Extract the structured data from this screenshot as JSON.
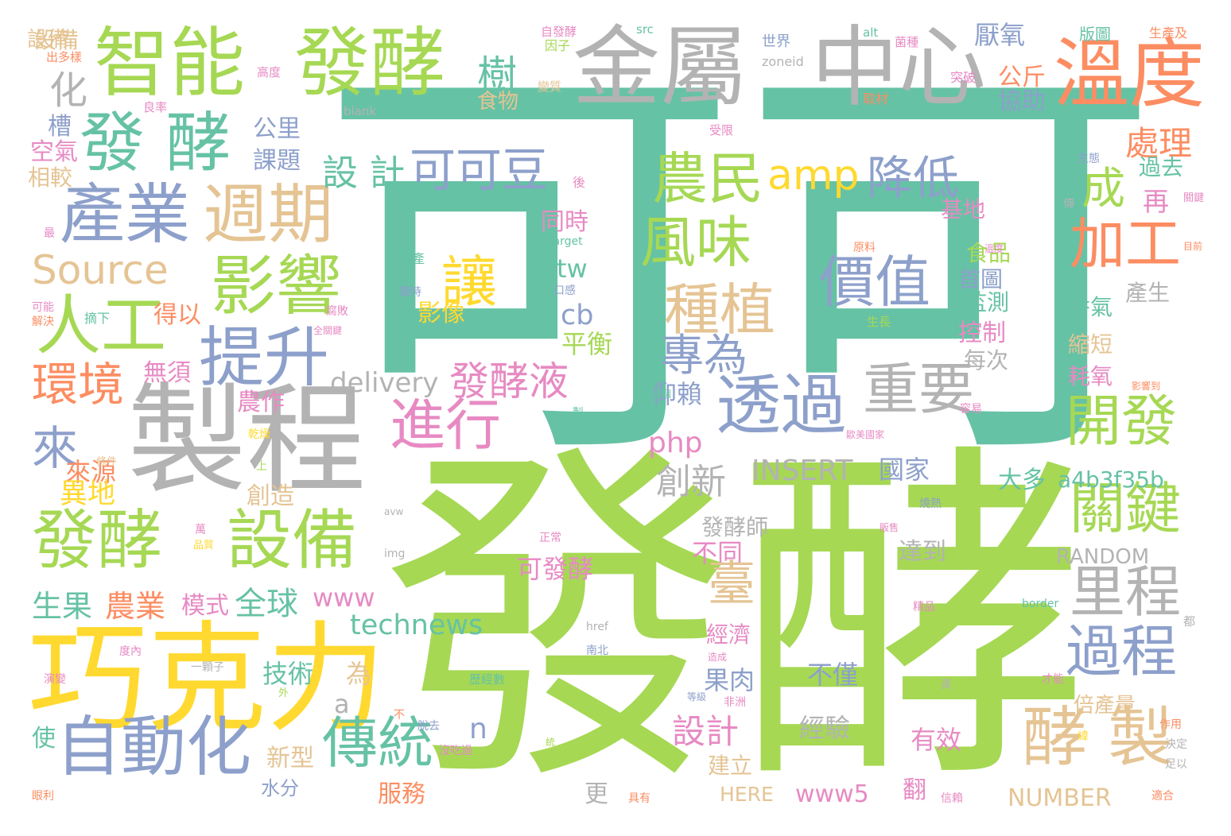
{
  "colors": {
    "teal": "#66c2a5",
    "green": "#a6d854",
    "yellow": "#ffd92f",
    "gray": "#b3b3b3",
    "orange": "#fc8d62",
    "blue": "#8da0cb",
    "pink": "#e78ac3",
    "tan": "#e5c494"
  },
  "words": [
    {
      "text": "可可",
      "color": "teal"
    },
    {
      "text": "發酵",
      "color": "green"
    },
    {
      "text": "巧克力",
      "color": "yellow"
    },
    {
      "text": "製程",
      "color": "gray"
    },
    {
      "text": "金屬",
      "color": "gray"
    },
    {
      "text": "中心",
      "color": "gray"
    },
    {
      "text": "智能",
      "color": "green"
    },
    {
      "text": "發酵",
      "color": "green"
    },
    {
      "text": "溫度",
      "color": "orange"
    },
    {
      "text": "發 酵",
      "color": "teal"
    },
    {
      "text": "產業",
      "color": "blue"
    },
    {
      "text": "週期",
      "color": "tan"
    },
    {
      "text": "影響",
      "color": "green"
    },
    {
      "text": "人工",
      "color": "green"
    },
    {
      "text": "提升",
      "color": "blue"
    },
    {
      "text": "透過",
      "color": "blue"
    },
    {
      "text": "重要",
      "color": "gray"
    },
    {
      "text": "進行",
      "color": "pink"
    },
    {
      "text": "自動化",
      "color": "blue"
    },
    {
      "text": "發酵",
      "color": "green"
    },
    {
      "text": "設備",
      "color": "green"
    },
    {
      "text": "傳統",
      "color": "teal"
    },
    {
      "text": "開發",
      "color": "green"
    },
    {
      "text": "過程",
      "color": "blue"
    },
    {
      "text": "酵 製",
      "color": "tan"
    },
    {
      "text": "里程",
      "color": "gray"
    },
    {
      "text": "關鍵",
      "color": "green"
    },
    {
      "text": "加工",
      "color": "orange"
    },
    {
      "text": "農民",
      "color": "green"
    },
    {
      "text": "風味",
      "color": "green"
    },
    {
      "text": "種植",
      "color": "tan"
    },
    {
      "text": "價值",
      "color": "blue"
    },
    {
      "text": "讓",
      "color": "yellow"
    },
    {
      "text": "可可豆",
      "color": "blue"
    },
    {
      "text": "amp",
      "color": "yellow"
    },
    {
      "text": "降低",
      "color": "blue"
    },
    {
      "text": "設 計",
      "color": "teal"
    },
    {
      "text": "Source",
      "color": "tan"
    },
    {
      "text": "環境",
      "color": "orange"
    },
    {
      "text": "來",
      "color": "blue"
    },
    {
      "text": "專為",
      "color": "blue"
    },
    {
      "text": "發酵液",
      "color": "pink"
    },
    {
      "text": "delivery",
      "color": "gray"
    },
    {
      "text": "創新",
      "color": "gray"
    },
    {
      "text": "成",
      "color": "green"
    },
    {
      "text": "處理",
      "color": "orange"
    },
    {
      "text": "過去",
      "color": "teal"
    },
    {
      "text": "再",
      "color": "pink"
    },
    {
      "text": "樹",
      "color": "teal"
    },
    {
      "text": "設備",
      "color": "tan"
    },
    {
      "text": "化",
      "color": "gray"
    },
    {
      "text": "槽",
      "color": "blue"
    },
    {
      "text": "空氣",
      "color": "pink"
    },
    {
      "text": "相較",
      "color": "tan"
    },
    {
      "text": "公里",
      "color": "blue"
    },
    {
      "text": "課題",
      "color": "blue"
    },
    {
      "text": "可控",
      "color": "teal"
    },
    {
      "text": "公斤",
      "color": "orange"
    },
    {
      "text": "協助",
      "color": "blue"
    },
    {
      "text": "厭氧",
      "color": "blue"
    },
    {
      "text": "食物",
      "color": "tan"
    },
    {
      "text": "得以",
      "color": "orange"
    },
    {
      "text": "無須",
      "color": "pink"
    },
    {
      "text": "農作",
      "color": "pink"
    },
    {
      "text": "來源",
      "color": "orange"
    },
    {
      "text": "異地",
      "color": "yellow"
    },
    {
      "text": "生果",
      "color": "teal"
    },
    {
      "text": "農業",
      "color": "orange"
    },
    {
      "text": "模式",
      "color": "pink"
    },
    {
      "text": "全球",
      "color": "teal"
    },
    {
      "text": "www",
      "color": "pink"
    },
    {
      "text": "technews",
      "color": "teal"
    },
    {
      "text": "技術",
      "color": "teal"
    },
    {
      "text": "為",
      "color": "tan"
    },
    {
      "text": "a",
      "color": "gray"
    },
    {
      "text": "n",
      "color": "blue"
    },
    {
      "text": "php",
      "color": "pink"
    },
    {
      "text": "cb",
      "color": "blue"
    },
    {
      "text": "tw",
      "color": "teal"
    },
    {
      "text": "平衡",
      "color": "green"
    },
    {
      "text": "影像",
      "color": "yellow"
    },
    {
      "text": "同時",
      "color": "pink"
    },
    {
      "text": "仰賴",
      "color": "blue"
    },
    {
      "text": "INSERT",
      "color": "gray"
    },
    {
      "text": "國家",
      "color": "blue"
    },
    {
      "text": "大多",
      "color": "teal"
    },
    {
      "text": "a4b3f35b",
      "color": "teal"
    },
    {
      "text": "發酵師",
      "color": "gray"
    },
    {
      "text": "不同",
      "color": "pink"
    },
    {
      "text": "可發酵",
      "color": "pink"
    },
    {
      "text": "達到",
      "color": "gray"
    },
    {
      "text": "臺",
      "color": "tan"
    },
    {
      "text": "RANDOM",
      "color": "gray"
    },
    {
      "text": "經濟",
      "color": "pink"
    },
    {
      "text": "果肉",
      "color": "blue"
    },
    {
      "text": "設計",
      "color": "pink"
    },
    {
      "text": "不僅",
      "color": "blue"
    },
    {
      "text": "經驗",
      "color": "gray"
    },
    {
      "text": "有效",
      "color": "pink"
    },
    {
      "text": "倍產量",
      "color": "tan"
    },
    {
      "text": "NUMBER",
      "color": "tan"
    },
    {
      "text": "www5",
      "color": "pink"
    },
    {
      "text": "HERE",
      "color": "tan"
    },
    {
      "text": "建立",
      "color": "tan"
    },
    {
      "text": "服務",
      "color": "orange"
    },
    {
      "text": "翻",
      "color": "pink"
    },
    {
      "text": "更",
      "color": "gray"
    },
    {
      "text": "新型",
      "color": "tan"
    },
    {
      "text": "水分",
      "color": "blue"
    },
    {
      "text": "使",
      "color": "teal"
    },
    {
      "text": "食品",
      "color": "green"
    },
    {
      "text": "首圖",
      "color": "blue"
    },
    {
      "text": "監測",
      "color": "teal"
    },
    {
      "text": "控制",
      "color": "pink"
    },
    {
      "text": "每次",
      "color": "gray"
    },
    {
      "text": "縮短",
      "color": "tan"
    },
    {
      "text": "耗氧",
      "color": "pink"
    },
    {
      "text": "香氣",
      "color": "teal"
    },
    {
      "text": "產生",
      "color": "gray"
    },
    {
      "text": "基地",
      "color": "pink"
    },
    {
      "text": "創造",
      "color": "tan"
    },
    {
      "text": "設備",
      "color": "tan"
    },
    {
      "text": "世界",
      "color": "blue"
    },
    {
      "text": "因子",
      "color": "green"
    },
    {
      "text": "取材",
      "color": "orange"
    },
    {
      "text": "突破",
      "color": "pink"
    },
    {
      "text": "版圖",
      "color": "teal"
    },
    {
      "text": "生產及",
      "color": "orange"
    },
    {
      "text": "自發酵",
      "color": "pink"
    },
    {
      "text": "src",
      "color": "teal"
    },
    {
      "text": "alt",
      "color": "teal"
    },
    {
      "text": "菌種",
      "color": "pink"
    },
    {
      "text": "zoneid",
      "color": "gray"
    },
    {
      "text": "blank",
      "color": "gray"
    },
    {
      "text": "出多樣",
      "color": "orange"
    },
    {
      "text": "高度",
      "color": "pink"
    },
    {
      "text": "良率",
      "color": "pink"
    },
    {
      "text": "變質",
      "color": "tan"
    },
    {
      "text": "受限",
      "color": "pink"
    },
    {
      "text": "生態",
      "color": "blue"
    },
    {
      "text": "後",
      "color": "pink"
    },
    {
      "text": "傳",
      "color": "gray"
    },
    {
      "text": "關鍵",
      "color": "pink"
    },
    {
      "text": "目前",
      "color": "orange"
    },
    {
      "text": "最",
      "color": "pink"
    },
    {
      "text": "生產",
      "color": "teal"
    },
    {
      "text": "獨特",
      "color": "blue"
    },
    {
      "text": "口感",
      "color": "blue"
    },
    {
      "text": "原料",
      "color": "orange"
    },
    {
      "text": "target",
      "color": "teal"
    },
    {
      "text": "可能",
      "color": "pink"
    },
    {
      "text": "解決",
      "color": "orange"
    },
    {
      "text": "摘下",
      "color": "teal"
    },
    {
      "text": "腐敗",
      "color": "pink"
    },
    {
      "text": "ck",
      "color": "teal"
    },
    {
      "text": "生長",
      "color": "green"
    },
    {
      "text": "全關鍵",
      "color": "pink"
    },
    {
      "text": "溫度",
      "color": "pink"
    },
    {
      "text": "影響到",
      "color": "orange"
    },
    {
      "text": "製",
      "color": "teal"
    },
    {
      "text": "整個",
      "color": "teal"
    },
    {
      "text": "容易",
      "color": "pink"
    },
    {
      "text": "乾燥",
      "color": "yellow"
    },
    {
      "text": "歐美國家",
      "color": "pink"
    },
    {
      "text": "條件",
      "color": "tan"
    },
    {
      "text": "上",
      "color": "green"
    },
    {
      "text": "燒熱",
      "color": "blue"
    },
    {
      "text": "萬",
      "color": "pink"
    },
    {
      "text": "品質",
      "color": "yellow"
    },
    {
      "text": "正常",
      "color": "pink"
    },
    {
      "text": "販售",
      "color": "pink"
    },
    {
      "text": "img",
      "color": "gray"
    },
    {
      "text": "avw",
      "color": "gray"
    },
    {
      "text": "精品",
      "color": "pink"
    },
    {
      "text": "border",
      "color": "teal"
    },
    {
      "text": "href",
      "color": "gray"
    },
    {
      "text": "都",
      "color": "gray"
    },
    {
      "text": "度內",
      "color": "pink"
    },
    {
      "text": "南北",
      "color": "blue"
    },
    {
      "text": "一顆子",
      "color": "gray"
    },
    {
      "text": "造成",
      "color": "pink"
    },
    {
      "text": "歷經數",
      "color": "teal"
    },
    {
      "text": "演變",
      "color": "pink"
    },
    {
      "text": "外",
      "color": "green"
    },
    {
      "text": "不",
      "color": "orange"
    },
    {
      "text": "等級",
      "color": "blue"
    },
    {
      "text": "非洲",
      "color": "pink"
    },
    {
      "text": "黃",
      "color": "gray"
    },
    {
      "text": "才能",
      "color": "pink"
    },
    {
      "text": "作用",
      "color": "orange"
    },
    {
      "text": "決定",
      "color": "gray"
    },
    {
      "text": "緯",
      "color": "yellow"
    },
    {
      "text": "沒吃過",
      "color": "pink"
    },
    {
      "text": "統",
      "color": "green"
    },
    {
      "text": "脫去",
      "color": "blue"
    },
    {
      "text": "足以",
      "color": "gray"
    },
    {
      "text": "適合",
      "color": "orange"
    },
    {
      "text": "眼利",
      "color": "orange"
    },
    {
      "text": "具有",
      "color": "orange"
    },
    {
      "text": "信賴",
      "color": "pink"
    }
  ]
}
